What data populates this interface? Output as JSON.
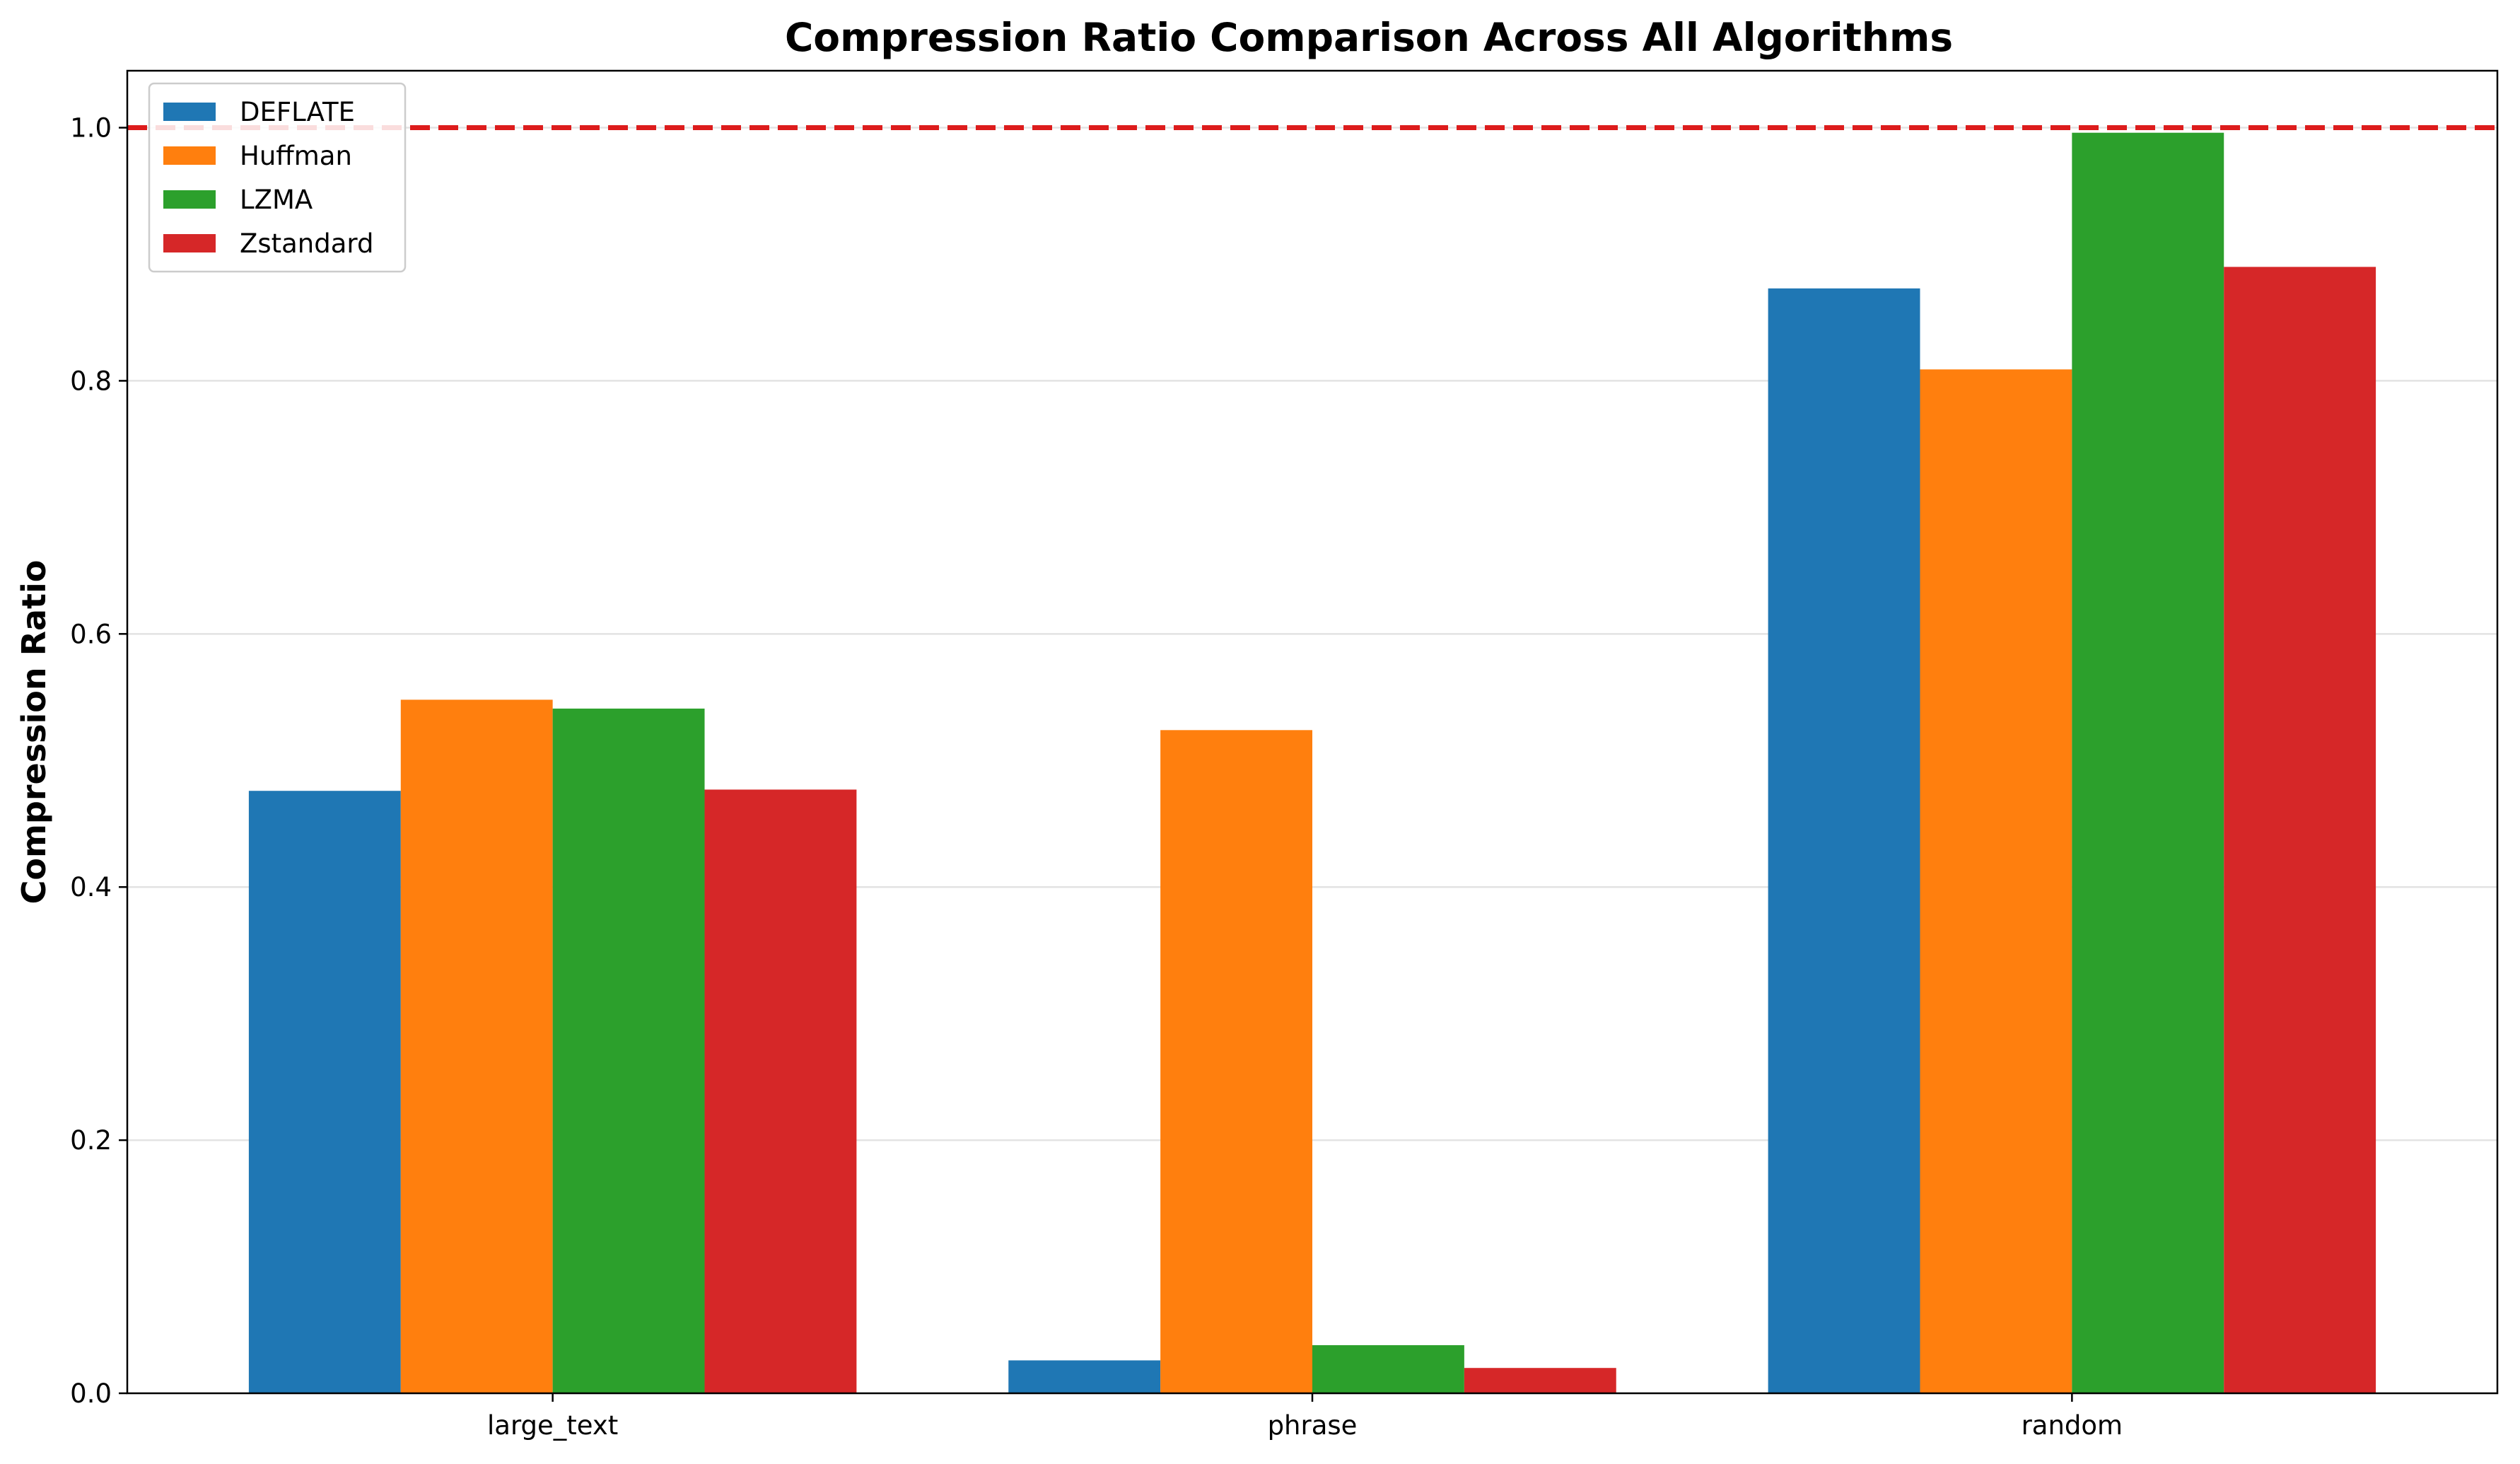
{
  "chart_data": {
    "type": "bar",
    "title": "Compression Ratio Comparison Across All Algorithms",
    "xlabel": "",
    "ylabel": "Compression Ratio",
    "categories": [
      "large_text",
      "phrase",
      "random"
    ],
    "series": [
      {
        "name": "DEFLATE",
        "color": "#1f77b4",
        "values": [
          0.476,
          0.026,
          0.873
        ]
      },
      {
        "name": "Huffman",
        "color": "#ff7f0e",
        "values": [
          0.548,
          0.524,
          0.809
        ]
      },
      {
        "name": "LZMA",
        "color": "#2ca02c",
        "values": [
          0.541,
          0.038,
          0.996
        ]
      },
      {
        "name": "Zstandard",
        "color": "#d62728",
        "values": [
          0.477,
          0.02,
          0.89
        ]
      }
    ],
    "ylim": [
      0,
      1.045
    ],
    "yticks": [
      0.0,
      0.2,
      0.4,
      0.6,
      0.8,
      1.0
    ],
    "ytick_labels": [
      "0.0",
      "0.2",
      "0.4",
      "0.6",
      "0.8",
      "1.0"
    ],
    "reference_line": {
      "y": 1.0,
      "color": "#dd1c1c",
      "style": "dashed"
    },
    "grid": "y-axis, light gray",
    "legend": "top-left"
  }
}
